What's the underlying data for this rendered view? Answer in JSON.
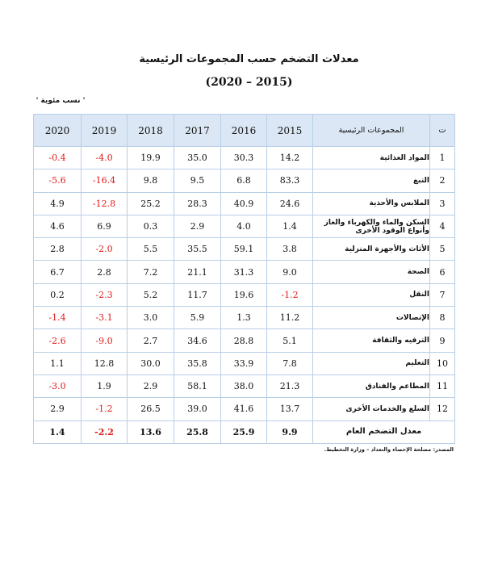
{
  "title": "معدلات التضخم حسب المجموعات الرئيسية",
  "years_range": "(2020 – 2015)",
  "unit_note": "' نسب مئوية '",
  "header": {
    "idx": "ت",
    "group": "المجموعات الرئيسية",
    "y2015": "2015",
    "y2016": "2016",
    "y2017": "2017",
    "y2018": "2018",
    "y2019": "2019",
    "y2020": "2020"
  },
  "rows": [
    {
      "idx": "1",
      "label": "المواد الغذائية",
      "v2015": "14.2",
      "v2016": "30.3",
      "v2017": "35.0",
      "v2018": "19.9",
      "v2019": "-4.0",
      "v2020": "-0.4"
    },
    {
      "idx": "2",
      "label": "التبغ",
      "v2015": "83.3",
      "v2016": "6.8",
      "v2017": "9.5",
      "v2018": "9.8",
      "v2019": "-16.4",
      "v2020": "-5.6"
    },
    {
      "idx": "3",
      "label": "الملابس والأحذية",
      "v2015": "24.6",
      "v2016": "40.9",
      "v2017": "28.3",
      "v2018": "25.2",
      "v2019": "-12.8",
      "v2020": "4.9"
    },
    {
      "idx": "4",
      "label": "السكن والماء والكهرباء والغاز وأنواع الوقود الأخرى",
      "v2015": "1.4",
      "v2016": "4.0",
      "v2017": "2.9",
      "v2018": "0.3",
      "v2019": "6.9",
      "v2020": "4.6"
    },
    {
      "idx": "5",
      "label": "الأثاث والأجهزة المنزلية",
      "v2015": "3.8",
      "v2016": "59.1",
      "v2017": "35.5",
      "v2018": "5.5",
      "v2019": "-2.0",
      "v2020": "2.8"
    },
    {
      "idx": "6",
      "label": "الصحة",
      "v2015": "9.0",
      "v2016": "31.3",
      "v2017": "21.1",
      "v2018": "7.2",
      "v2019": "2.8",
      "v2020": "6.7"
    },
    {
      "idx": "7",
      "label": "النقل",
      "v2015": "-1.2",
      "v2016": "19.6",
      "v2017": "11.7",
      "v2018": "5.2",
      "v2019": "-2.3",
      "v2020": "0.2"
    },
    {
      "idx": "8",
      "label": "الإتصالات",
      "v2015": "11.2",
      "v2016": "1.3",
      "v2017": "5.9",
      "v2018": "3.0",
      "v2019": "-3.1",
      "v2020": "-1.4"
    },
    {
      "idx": "9",
      "label": "الترفيه والثقافة",
      "v2015": "5.1",
      "v2016": "28.8",
      "v2017": "34.6",
      "v2018": "2.7",
      "v2019": "-9.0",
      "v2020": "-2.6"
    },
    {
      "idx": "10",
      "label": "التعليم",
      "v2015": "7.8",
      "v2016": "33.9",
      "v2017": "35.8",
      "v2018": "30.0",
      "v2019": "12.8",
      "v2020": "1.1"
    },
    {
      "idx": "11",
      "label": "المطاعم والفنادق",
      "v2015": "21.3",
      "v2016": "38.0",
      "v2017": "58.1",
      "v2018": "2.9",
      "v2019": "1.9",
      "v2020": "-3.0"
    },
    {
      "idx": "12",
      "label": "السلع والخدمات الأخرى",
      "v2015": "13.7",
      "v2016": "41.6",
      "v2017": "39.0",
      "v2018": "26.5",
      "v2019": "-1.2",
      "v2020": "2.9"
    }
  ],
  "total": {
    "label": "معدل التضخم العام",
    "v2015": "9.9",
    "v2016": "25.9",
    "v2017": "25.8",
    "v2018": "13.6",
    "v2019": "-2.2",
    "v2020": "1.4"
  },
  "source": "المصدر: مصلحة الإحصاء والتعداد – وزارة التخطيط.",
  "colors": {
    "negative": "#e01b1b",
    "header_bg": "#dbe7f4",
    "border": "#b8cfe6"
  }
}
